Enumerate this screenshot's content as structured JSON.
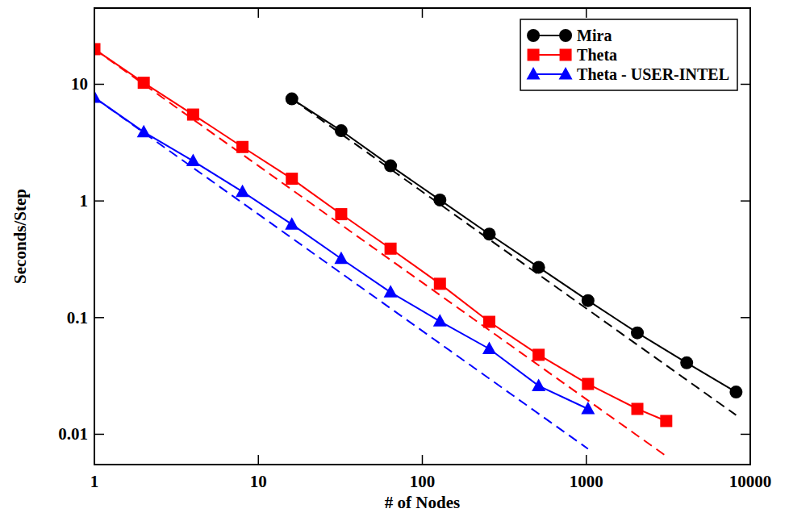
{
  "chart_data": {
    "type": "line",
    "x_label": "# of Nodes",
    "y_label": "Seconds/Step",
    "log": true,
    "grid": false,
    "legend": "top-right",
    "xlim": [
      1,
      10000
    ],
    "ylim": [
      0.0055,
      45
    ],
    "xticks": [
      1,
      10,
      100,
      1000,
      10000
    ],
    "yticks": [
      0.01,
      0.1,
      1,
      10
    ],
    "series": [
      {
        "name": "Mira",
        "color": "#000000",
        "marker": "circle",
        "line_style": "solid",
        "x": [
          16,
          32,
          64,
          128,
          256,
          512,
          1024,
          2048,
          4096,
          8192
        ],
        "values": [
          7.5,
          4.0,
          2.0,
          1.02,
          0.52,
          0.27,
          0.14,
          0.074,
          0.041,
          0.023
        ]
      },
      {
        "name": "Theta",
        "color": "#ff0000",
        "marker": "square",
        "line_style": "solid",
        "x": [
          1,
          2,
          4,
          8,
          16,
          32,
          64,
          128,
          256,
          512,
          1024,
          2048,
          3072
        ],
        "values": [
          20,
          10.3,
          5.5,
          2.9,
          1.55,
          0.77,
          0.39,
          0.195,
          0.092,
          0.048,
          0.027,
          0.0165,
          0.013
        ]
      },
      {
        "name": "Theta - USER-INTEL",
        "color": "#0000ff",
        "marker": "triangle",
        "line_style": "solid",
        "x": [
          1,
          2,
          4,
          8,
          16,
          32,
          64,
          128,
          256,
          512,
          1024
        ],
        "values": [
          7.7,
          3.9,
          2.2,
          1.2,
          0.63,
          0.32,
          0.165,
          0.093,
          0.054,
          0.026,
          0.0165
        ]
      },
      {
        "color": "#000000",
        "line_style": "dashed",
        "x": [
          16,
          8192
        ],
        "values": [
          7.5,
          0.0146
        ]
      },
      {
        "color": "#ff0000",
        "line_style": "dashed",
        "x": [
          1,
          3072
        ],
        "values": [
          20,
          0.0065
        ]
      },
      {
        "color": "#0000ff",
        "line_style": "dashed",
        "x": [
          1,
          1024
        ],
        "values": [
          7.7,
          0.0075
        ]
      }
    ]
  }
}
